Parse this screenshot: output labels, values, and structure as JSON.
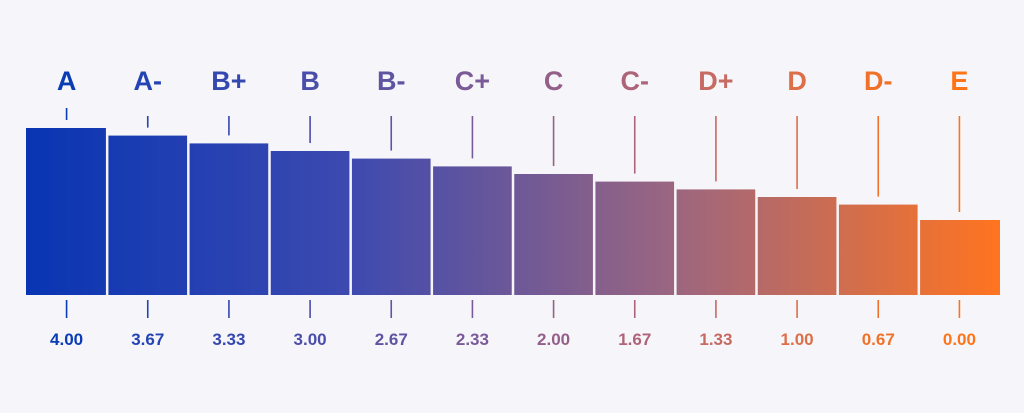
{
  "chart_data": {
    "type": "bar",
    "title": "",
    "xlabel": "",
    "ylabel": "",
    "categories": [
      "A",
      "A-",
      "B+",
      "B",
      "B-",
      "C+",
      "C",
      "C-",
      "D+",
      "D",
      "D-",
      "E"
    ],
    "series": [
      {
        "values": [
          4.0,
          3.67,
          3.33,
          3.0,
          2.67,
          2.33,
          2.0,
          1.67,
          1.33,
          1.0,
          0.67,
          0.0
        ]
      }
    ],
    "value_labels": [
      "4.00",
      "3.67",
      "3.33",
      "3.00",
      "2.67",
      "2.33",
      "2.00",
      "1.67",
      "1.33",
      "1.00",
      "0.67",
      "0.00"
    ],
    "colors": [
      "#0a3cb4",
      "#2444b4",
      "#3448b0",
      "#4a4eaa",
      "#5e54a2",
      "#7a5a98",
      "#94608a",
      "#ae6478",
      "#c66a62",
      "#dc6e48",
      "#f0722a",
      "#ff7418"
    ],
    "bar_gradient": [
      "#0835b3",
      "#3d4ab0",
      "#9c6680",
      "#ff7420"
    ],
    "background": "#f6f6fa",
    "grid": false,
    "legend": "none"
  }
}
